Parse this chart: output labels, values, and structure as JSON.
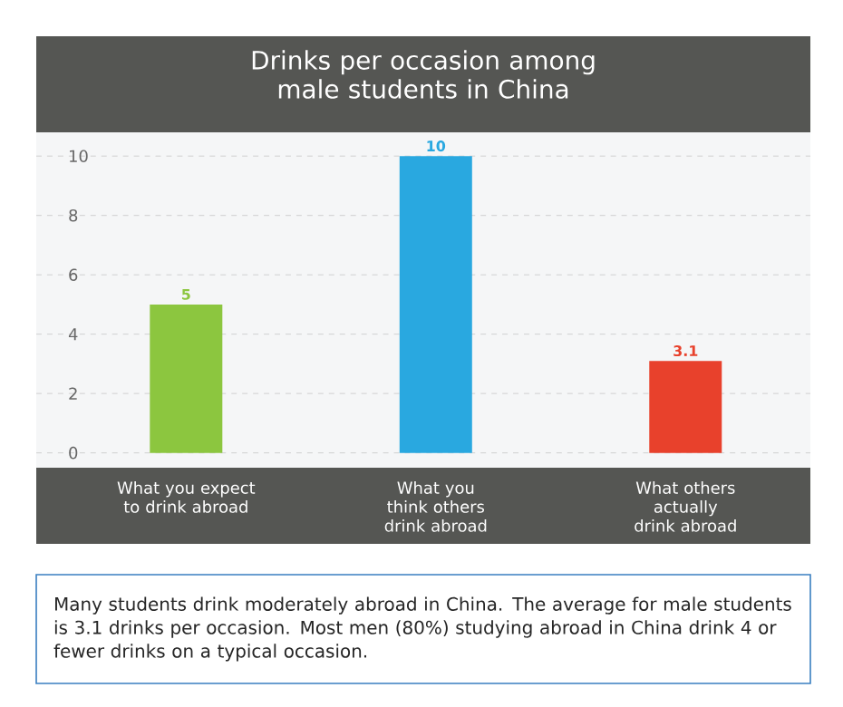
{
  "chart_data": {
    "type": "bar",
    "title": "Drinks per occasion among male students in China",
    "categories": [
      "What you expect to drink abroad",
      "What you think others drink abroad",
      "What others actually drink abroad"
    ],
    "values": [
      5,
      10,
      3.1
    ],
    "colors": [
      "#8cc63f",
      "#29a8e0",
      "#e8412c"
    ],
    "ylim": [
      -0.5,
      10.8
    ],
    "yticks": [
      0,
      2,
      4,
      6,
      8,
      10
    ],
    "grid": "y",
    "data_labels": true,
    "annotations": [
      "Many students drink moderately abroad in China. The average for male students is 3.1 drinks per occasion. Most men (80%) studying abroad in China drink 4 or fewer drinks on a typical occasion."
    ]
  }
}
